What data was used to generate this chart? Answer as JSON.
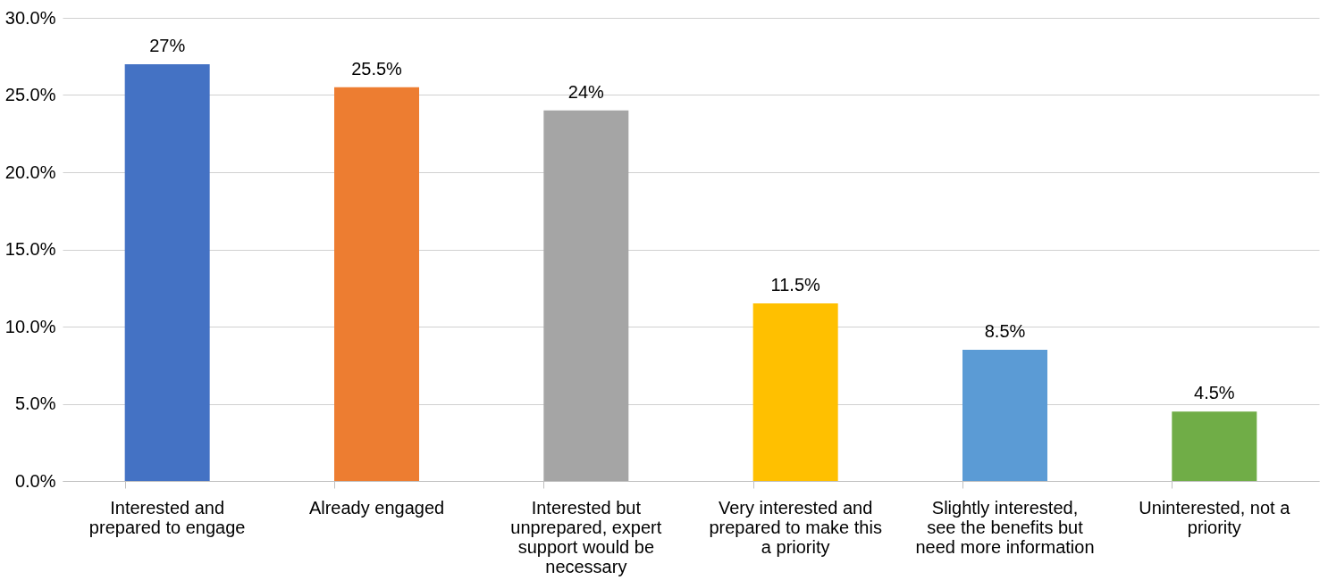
{
  "chart_data": {
    "type": "bar",
    "categories": [
      "Interested and prepared to engage",
      "Already engaged",
      "Interested but unprepared, expert support would be necessary",
      "Very interested and prepared to make this a priority",
      "Slightly interested, see the benefits but need more information",
      "Uninterested, not a priority"
    ],
    "values": [
      27,
      25.5,
      24,
      11.5,
      8.5,
      4.5
    ],
    "colors": [
      "#4472c4",
      "#ed7d31",
      "#a5a5a5",
      "#ffc000",
      "#5b9bd5",
      "#70ad47"
    ],
    "value_labels": [
      "27%",
      "25.5%",
      "24%",
      "11.5%",
      "8.5%",
      "4.5%"
    ],
    "ylim": [
      0,
      30
    ],
    "yticks": [
      {
        "value": 0,
        "label": "0.0%"
      },
      {
        "value": 5,
        "label": "5.0%"
      },
      {
        "value": 10,
        "label": "10.0%"
      },
      {
        "value": 15,
        "label": "15.0%"
      },
      {
        "value": 20,
        "label": "20.0%"
      },
      {
        "value": 25,
        "label": "25.0%"
      },
      {
        "value": 30,
        "label": "30.0%"
      }
    ],
    "grid": "y"
  }
}
